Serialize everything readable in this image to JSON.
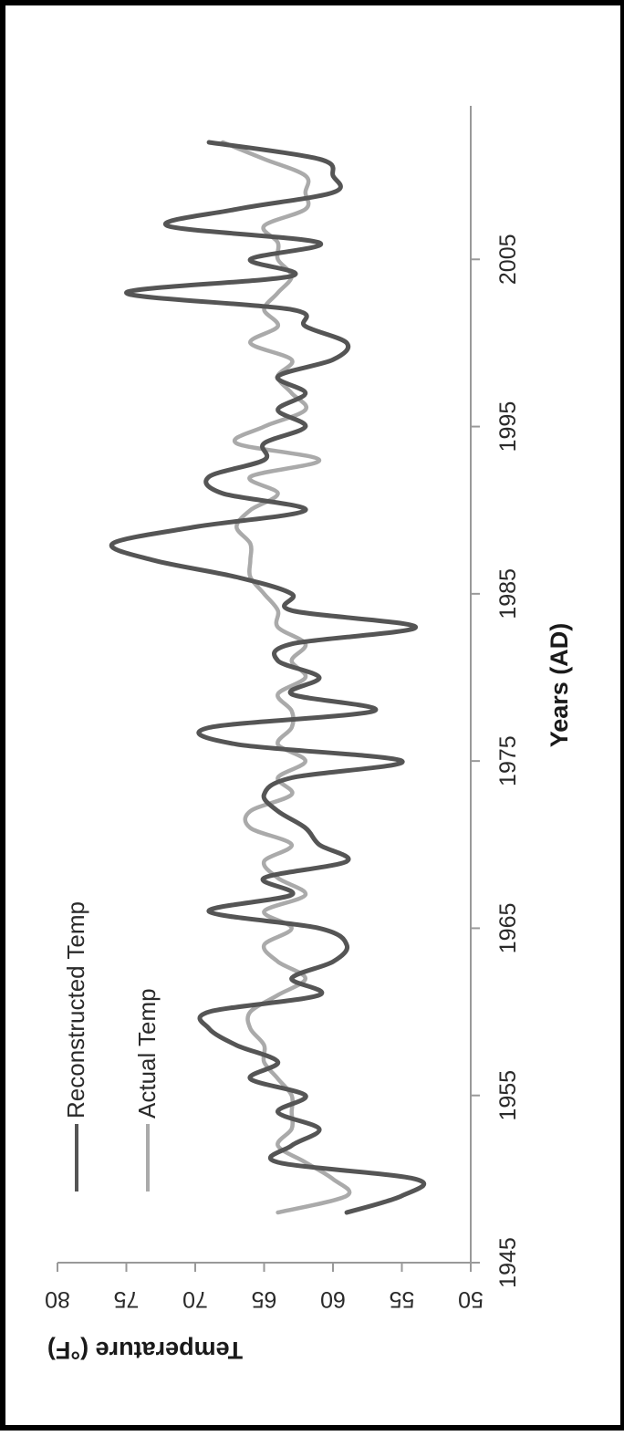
{
  "chart_data": {
    "type": "line",
    "xlabel": "Years (AD)",
    "ylabel": "Temperature (°F)",
    "xlim": [
      1945,
      2015
    ],
    "ylim": [
      50,
      80
    ],
    "x_ticks": [
      "1945",
      "1955",
      "1965",
      "1975",
      "1985",
      "1995",
      "2005"
    ],
    "y_ticks": [
      "50",
      "55",
      "60",
      "65",
      "70",
      "75",
      "80"
    ],
    "grid": false,
    "legend_position": "top-left",
    "series": [
      {
        "name": "Reconstructed Temp",
        "color": "#555555",
        "x": [
          1948,
          1949,
          1950,
          1951,
          1952,
          1953,
          1954,
          1955,
          1956,
          1957,
          1958,
          1959,
          1960,
          1961,
          1962,
          1963,
          1964,
          1965,
          1966,
          1967,
          1968,
          1969,
          1970,
          1971,
          1972,
          1973,
          1974,
          1975,
          1976,
          1977,
          1978,
          1979,
          1980,
          1981,
          1982,
          1983,
          1984,
          1985,
          1986,
          1987,
          1988,
          1989,
          1990,
          1991,
          1992,
          1993,
          1994,
          1995,
          1996,
          1997,
          1998,
          1999,
          2000,
          2001,
          2002,
          2003,
          2004,
          2005,
          2006,
          2007,
          2008,
          2009,
          2010,
          2011,
          2012
        ],
        "values": [
          59,
          55,
          54,
          64,
          63,
          61,
          64,
          62,
          66,
          64,
          67,
          69,
          69,
          61,
          63,
          60,
          59,
          61,
          69,
          63,
          65,
          59,
          61,
          62,
          64,
          65,
          63,
          55,
          67,
          69,
          57,
          63,
          61,
          64,
          63,
          54,
          63,
          63,
          67,
          73,
          76,
          70,
          62,
          68,
          69,
          65,
          65,
          62,
          64,
          62,
          64,
          60,
          59,
          62,
          63,
          75,
          63,
          66,
          61,
          72,
          67,
          60,
          60,
          61,
          69
        ]
      },
      {
        "name": "Actual Temp",
        "color": "#aaaaaa",
        "x": [
          1948,
          1949,
          1950,
          1951,
          1952,
          1953,
          1954,
          1955,
          1956,
          1957,
          1958,
          1959,
          1960,
          1961,
          1962,
          1963,
          1964,
          1965,
          1966,
          1967,
          1968,
          1969,
          1970,
          1971,
          1972,
          1973,
          1974,
          1975,
          1976,
          1977,
          1978,
          1979,
          1980,
          1981,
          1982,
          1983,
          1984,
          1985,
          1986,
          1987,
          1988,
          1989,
          1990,
          1991,
          1992,
          1993,
          1994,
          1995,
          1996,
          1997,
          1998,
          1999,
          2000,
          2001,
          2002,
          2003,
          2004,
          2005,
          2006,
          2007,
          2008,
          2009,
          2010,
          2011,
          2012
        ],
        "values": [
          64,
          59,
          60,
          62,
          64,
          63,
          63,
          63,
          64,
          65,
          65,
          66,
          66,
          64,
          62,
          64,
          65,
          63,
          65,
          62,
          64,
          65,
          63,
          66,
          66,
          63,
          64,
          62,
          64,
          63,
          63,
          64,
          62,
          63,
          62,
          64,
          64,
          65,
          66,
          66,
          66,
          67,
          66,
          64,
          66,
          61,
          67,
          65,
          62,
          63,
          64,
          63,
          66,
          64,
          65,
          64,
          63,
          64,
          64,
          65,
          62,
          62,
          62,
          65,
          68
        ]
      }
    ]
  }
}
